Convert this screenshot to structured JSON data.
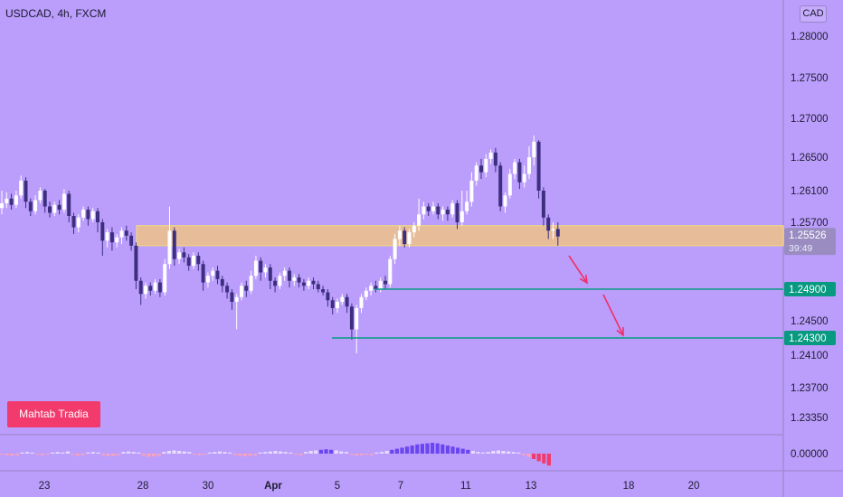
{
  "header": {
    "title": "USDCAD, 4h, FXCM",
    "currency": "CAD"
  },
  "brand": {
    "label": "Mahtab Tradia"
  },
  "chart_data": {
    "type": "candlestick",
    "symbol": "USDCAD",
    "timeframe": "4h",
    "source": "FXCM",
    "y_axis": {
      "ticks": [
        "1.28000",
        "1.27500",
        "1.27000",
        "1.26500",
        "1.26100",
        "1.25700",
        "1.24900",
        "1.24500",
        "1.24100",
        "1.23700",
        "1.23350"
      ],
      "range": [
        1.2325,
        1.283
      ]
    },
    "x_axis": {
      "ticks": [
        "23",
        "28",
        "30",
        "Apr",
        "5",
        "7",
        "11",
        "13",
        "18",
        "20"
      ]
    },
    "price_badges": [
      {
        "label": "1.25526",
        "sub": "39:49",
        "value": 1.25526,
        "color": "#9a8cc0"
      },
      {
        "label": "1.24900",
        "value": 1.249,
        "color": "#089981"
      },
      {
        "label": "1.24300",
        "value": 1.243,
        "color": "#089981"
      }
    ],
    "zone": {
      "low": 1.2542,
      "high": 1.2566,
      "color": "#f6c878"
    },
    "support_lines": [
      {
        "value": 1.249,
        "from_x": 414
      },
      {
        "value": 1.243,
        "from_x": 367
      }
    ],
    "arrows": [
      {
        "from": [
          629,
          283
        ],
        "to": [
          649,
          313
        ]
      },
      {
        "from": [
          667,
          326
        ],
        "to": [
          689,
          371
        ]
      }
    ],
    "oscillator": {
      "tick": "0.00000"
    },
    "candles": [
      [
        1.2588,
        1.2594,
        1.261,
        1.258
      ],
      [
        1.2594,
        1.26,
        1.2608,
        1.2588
      ],
      [
        1.26,
        1.2592,
        1.2606,
        1.2586
      ],
      [
        1.2592,
        1.2604,
        1.261,
        1.2588
      ],
      [
        1.2604,
        1.2622,
        1.2628,
        1.26
      ],
      [
        1.2622,
        1.2596,
        1.2626,
        1.2588
      ],
      [
        1.2596,
        1.2584,
        1.26,
        1.2578
      ],
      [
        1.2584,
        1.2598,
        1.2604,
        1.258
      ],
      [
        1.2598,
        1.261,
        1.2614,
        1.2594
      ],
      [
        1.261,
        1.259,
        1.2612,
        1.2582
      ],
      [
        1.259,
        1.2582,
        1.2596,
        1.2576
      ],
      [
        1.2582,
        1.2592,
        1.2596,
        1.2578
      ],
      [
        1.2592,
        1.2586,
        1.2598,
        1.258
      ],
      [
        1.2586,
        1.2606,
        1.2612,
        1.2582
      ],
      [
        1.2606,
        1.2578,
        1.261,
        1.257
      ],
      [
        1.2578,
        1.2564,
        1.2582,
        1.2556
      ],
      [
        1.2564,
        1.2576,
        1.258,
        1.2558
      ],
      [
        1.2576,
        1.2586,
        1.259,
        1.2572
      ],
      [
        1.2586,
        1.2574,
        1.259,
        1.2566
      ],
      [
        1.2574,
        1.2584,
        1.2588,
        1.257
      ],
      [
        1.2584,
        1.257,
        1.2588,
        1.2558
      ],
      [
        1.257,
        1.2548,
        1.2574,
        1.253
      ],
      [
        1.2548,
        1.2558,
        1.2562,
        1.254
      ],
      [
        1.2558,
        1.2546,
        1.2564,
        1.2536
      ],
      [
        1.2546,
        1.2552,
        1.2556,
        1.254
      ],
      [
        1.2552,
        1.256,
        1.2564,
        1.2544
      ],
      [
        1.256,
        1.2554,
        1.2566,
        1.2548
      ],
      [
        1.2554,
        1.2542,
        1.2558,
        1.2536
      ],
      [
        1.2542,
        1.25,
        1.2546,
        1.249
      ],
      [
        1.25,
        1.2484,
        1.2504,
        1.247
      ],
      [
        1.2484,
        1.2494,
        1.2498,
        1.2478
      ],
      [
        1.2494,
        1.2488,
        1.2498,
        1.2482
      ],
      [
        1.2488,
        1.2498,
        1.2502,
        1.2484
      ],
      [
        1.2498,
        1.2486,
        1.2502,
        1.248
      ],
      [
        1.2486,
        1.252,
        1.2526,
        1.2482
      ],
      [
        1.252,
        1.256,
        1.259,
        1.2514
      ],
      [
        1.256,
        1.2526,
        1.2564,
        1.2518
      ],
      [
        1.2526,
        1.2534,
        1.2538,
        1.252
      ],
      [
        1.2534,
        1.2528,
        1.254,
        1.2522
      ],
      [
        1.2528,
        1.2518,
        1.2532,
        1.2512
      ],
      [
        1.2518,
        1.253,
        1.2534,
        1.2514
      ],
      [
        1.253,
        1.252,
        1.2534,
        1.2512
      ],
      [
        1.252,
        1.2498,
        1.2524,
        1.2488
      ],
      [
        1.2498,
        1.2506,
        1.251,
        1.2492
      ],
      [
        1.2506,
        1.2512,
        1.2516,
        1.25
      ],
      [
        1.2512,
        1.2502,
        1.2518,
        1.2496
      ],
      [
        1.2502,
        1.2494,
        1.2506,
        1.2486
      ],
      [
        1.2494,
        1.2486,
        1.2498,
        1.2478
      ],
      [
        1.2486,
        1.2474,
        1.249,
        1.2464
      ],
      [
        1.2474,
        1.248,
        1.2484,
        1.244
      ],
      [
        1.248,
        1.2494,
        1.2498,
        1.2476
      ],
      [
        1.2494,
        1.2488,
        1.25,
        1.248
      ],
      [
        1.2488,
        1.2506,
        1.2512,
        1.2484
      ],
      [
        1.2506,
        1.2524,
        1.253,
        1.2502
      ],
      [
        1.2524,
        1.251,
        1.2528,
        1.25
      ],
      [
        1.251,
        1.2516,
        1.252,
        1.2504
      ],
      [
        1.2516,
        1.25,
        1.252,
        1.249
      ],
      [
        1.25,
        1.2494,
        1.2504,
        1.2486
      ],
      [
        1.2494,
        1.2506,
        1.251,
        1.249
      ],
      [
        1.2506,
        1.2512,
        1.2516,
        1.25
      ],
      [
        1.2512,
        1.25,
        1.2516,
        1.2492
      ],
      [
        1.25,
        1.2504,
        1.2508,
        1.2494
      ],
      [
        1.2504,
        1.2498,
        1.2508,
        1.2492
      ],
      [
        1.2498,
        1.2494,
        1.2502,
        1.2488
      ],
      [
        1.2494,
        1.25,
        1.2504,
        1.249
      ],
      [
        1.25,
        1.2496,
        1.2504,
        1.249
      ],
      [
        1.2496,
        1.249,
        1.25,
        1.2486
      ],
      [
        1.249,
        1.2486,
        1.2494,
        1.2482
      ],
      [
        1.2486,
        1.2476,
        1.249,
        1.2468
      ],
      [
        1.2476,
        1.2466,
        1.248,
        1.2458
      ],
      [
        1.2466,
        1.2474,
        1.2478,
        1.246
      ],
      [
        1.2474,
        1.248,
        1.2484,
        1.247
      ],
      [
        1.248,
        1.2468,
        1.2484,
        1.246
      ],
      [
        1.2468,
        1.244,
        1.2472,
        1.2428
      ],
      [
        1.244,
        1.2466,
        1.247,
        1.2412
      ],
      [
        1.2466,
        1.248,
        1.2484,
        1.246
      ],
      [
        1.248,
        1.2488,
        1.2492,
        1.2476
      ],
      [
        1.2488,
        1.2494,
        1.2498,
        1.2482
      ],
      [
        1.2494,
        1.249,
        1.25,
        1.2486
      ],
      [
        1.249,
        1.25,
        1.2504,
        1.2486
      ],
      [
        1.25,
        1.2496,
        1.2506,
        1.249
      ],
      [
        1.2496,
        1.2526,
        1.253,
        1.2492
      ],
      [
        1.2526,
        1.255,
        1.2556,
        1.252
      ],
      [
        1.255,
        1.256,
        1.2566,
        1.2542
      ],
      [
        1.256,
        1.2544,
        1.2564,
        1.254
      ],
      [
        1.2544,
        1.2558,
        1.2562,
        1.254
      ],
      [
        1.2558,
        1.2566,
        1.257,
        1.2552
      ],
      [
        1.2566,
        1.258,
        1.26,
        1.256
      ],
      [
        1.258,
        1.259,
        1.2596,
        1.2574
      ],
      [
        1.259,
        1.2584,
        1.2594,
        1.2578
      ],
      [
        1.2584,
        1.259,
        1.2596,
        1.258
      ],
      [
        1.259,
        1.258,
        1.2594,
        1.2574
      ],
      [
        1.258,
        1.2586,
        1.259,
        1.2572
      ],
      [
        1.2586,
        1.258,
        1.259,
        1.2572
      ],
      [
        1.258,
        1.2594,
        1.2598,
        1.2576
      ],
      [
        1.2594,
        1.257,
        1.2598,
        1.2562
      ],
      [
        1.257,
        1.2584,
        1.261,
        1.2566
      ],
      [
        1.2584,
        1.2596,
        1.261,
        1.258
      ],
      [
        1.2596,
        1.2622,
        1.2632,
        1.259
      ],
      [
        1.2622,
        1.264,
        1.2644,
        1.2616
      ],
      [
        1.264,
        1.2632,
        1.2648,
        1.2624
      ],
      [
        1.2632,
        1.2648,
        1.2654,
        1.2626
      ],
      [
        1.2648,
        1.2656,
        1.266,
        1.2642
      ],
      [
        1.2656,
        1.264,
        1.2662,
        1.2632
      ],
      [
        1.264,
        1.259,
        1.2644,
        1.2584
      ],
      [
        1.259,
        1.2604,
        1.2608,
        1.2582
      ],
      [
        1.2604,
        1.263,
        1.2636,
        1.26
      ],
      [
        1.263,
        1.2644,
        1.2648,
        1.2624
      ],
      [
        1.2644,
        1.262,
        1.2648,
        1.2612
      ],
      [
        1.262,
        1.263,
        1.264,
        1.2614
      ],
      [
        1.263,
        1.265,
        1.2664,
        1.2624
      ],
      [
        1.265,
        1.267,
        1.2678,
        1.264
      ],
      [
        1.267,
        1.261,
        1.2672,
        1.26
      ],
      [
        1.261,
        1.2576,
        1.2614,
        1.2566
      ],
      [
        1.2576,
        1.256,
        1.258,
        1.255
      ],
      [
        1.256,
        1.2562,
        1.257,
        1.255
      ],
      [
        1.2562,
        1.2553,
        1.257,
        1.2542
      ]
    ],
    "osc": [
      -0.2,
      -0.3,
      -0.4,
      -0.3,
      0.2,
      0.3,
      0.2,
      -0.2,
      -0.3,
      -0.2,
      0.2,
      0.3,
      0.2,
      0.4,
      -0.2,
      -0.4,
      -0.3,
      0.2,
      0.3,
      0.2,
      -0.3,
      -0.5,
      -0.4,
      -0.3,
      0.3,
      0.4,
      0.3,
      0.2,
      -0.4,
      -0.6,
      -0.5,
      -0.4,
      0.3,
      0.5,
      0.6,
      0.5,
      0.4,
      0.3,
      -0.2,
      -0.3,
      -0.2,
      0.2,
      0.3,
      0.4,
      0.3,
      0.2,
      -0.3,
      -0.4,
      -0.5,
      -0.4,
      -0.3,
      0.2,
      0.3,
      0.4,
      0.5,
      0.4,
      0.3,
      0.2,
      -0.2,
      -0.3,
      0.3,
      0.5,
      0.6,
      0.7,
      0.8,
      0.7,
      0.6,
      0.4,
      0.3,
      -0.2,
      -0.4,
      -0.3,
      -0.2,
      -0.3,
      0.2,
      0.3,
      0.5,
      0.7,
      0.9,
      1.1,
      1.3,
      1.5,
      1.7,
      1.8,
      1.9,
      2.0,
      1.9,
      1.7,
      1.5,
      1.3,
      1.1,
      0.9,
      0.7,
      0.5,
      0.3,
      0.2,
      0.3,
      0.5,
      0.6,
      0.5,
      0.4,
      0.3,
      0.2,
      -0.3,
      -0.6,
      -1.0,
      -1.4,
      -1.8,
      -2.2
    ]
  }
}
